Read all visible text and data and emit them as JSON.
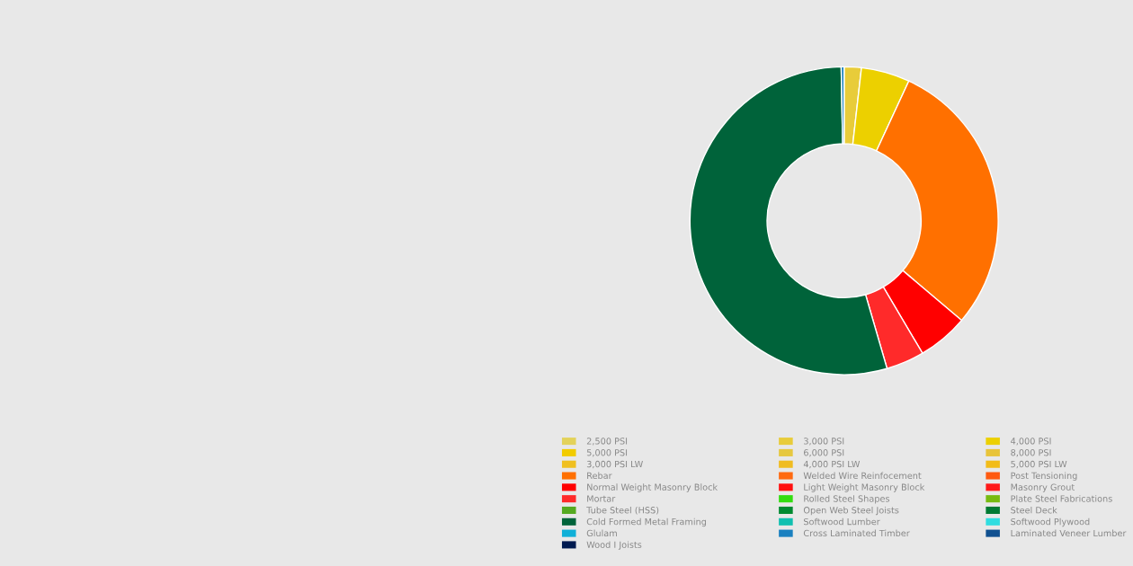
{
  "chart_data": {
    "type": "donut",
    "categories": [
      "2,500 PSI",
      "3,000 PSI",
      "4,000 PSI",
      "5,000 PSI",
      "6,000 PSI",
      "8,000 PSI",
      "3,000 PSI LW",
      "4,000 PSI LW",
      "5,000 PSI LW",
      "Rebar",
      "Welded Wire Reinfocement",
      "Post Tensioning",
      "Normal Weight Masonry Block",
      "Light Weight Masonry Block",
      "Masonry Grout",
      "Mortar",
      "Rolled Steel Shapes",
      "Plate Steel Fabrications",
      "Tube Steel (HSS)",
      "Open Web Steel Joists",
      "Steel Deck",
      "Cold Formed Metal Framing",
      "Softwood Lumber",
      "Softwood Plywood",
      "Glulam",
      "Cross Laminated Timber",
      "Laminated Veneer Lumber",
      "Wood I Joists"
    ],
    "values": [
      0,
      1.8,
      5.1,
      0,
      0,
      0,
      0,
      0,
      0,
      29.3,
      0,
      0,
      5.3,
      0,
      0,
      4.0,
      0,
      0,
      0,
      0,
      0,
      54.2,
      0,
      0,
      0,
      0.3,
      0,
      0
    ],
    "colors": [
      "#e3d25a",
      "#e8cc3a",
      "#ecd000",
      "#f2cc00",
      "#e6c840",
      "#e8c43a",
      "#f0c020",
      "#f0bc20",
      "#f2bc18",
      "#ff7000",
      "#ff6a10",
      "#ff5a10",
      "#ff0000",
      "#ff1010",
      "#ff1a1a",
      "#ff2a2a",
      "#33dd10",
      "#77bb10",
      "#55aa20",
      "#008a30",
      "#007a33",
      "#00633a",
      "#10c0b0",
      "#30dde0",
      "#10b0d8",
      "#1a80c0",
      "#105090",
      "#001a50"
    ],
    "legend": "bottom"
  }
}
